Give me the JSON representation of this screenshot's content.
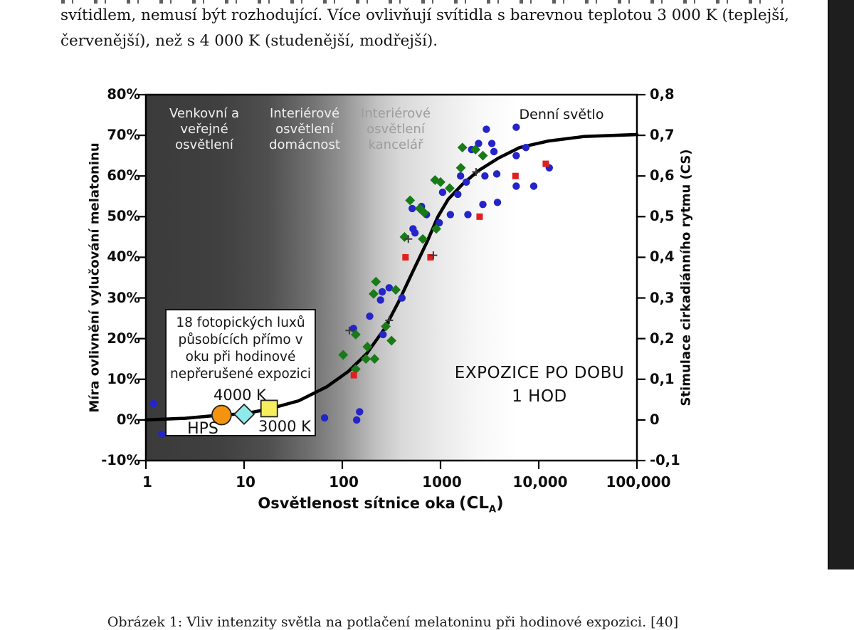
{
  "page": {
    "paragraph_line1": "svítidlem, nemusí být rozhodující. Více ovlivňují svítidla s barevnou teplotou 3 000 K (teplejší,",
    "paragraph_line2": "červenější), než s 4 000 K (studenější, modřejší).",
    "caption": "Obrázek 1: Vliv intenzity světla na potlačení melatoninu při hodinové expozici. [40]"
  },
  "chart": {
    "y_left": {
      "title": "Míra ovlivnění vylučování melatoninu",
      "ticks": [
        "80%",
        "70%",
        "60%",
        "50%",
        "40%",
        "30%",
        "20%",
        "10%",
        "0%",
        "-10%"
      ]
    },
    "y_right": {
      "title": "Stimulace cirkadiánního rytmu (CS)",
      "ticks": [
        "0,8",
        "0,7",
        "0,6",
        "0,5",
        "0,4",
        "0,3",
        "0,2",
        "0,1",
        "0",
        "-0,1"
      ]
    },
    "x_axis_title": {
      "main": "Osvětlenost sítnice oka",
      "unit_open": "(CL",
      "unit_sub": "A",
      "unit_close": ")"
    },
    "x_ticks": [
      "1",
      "10",
      "100",
      "1000",
      "10,000",
      "100,000"
    ],
    "zones": [
      {
        "lines": [
          "Venkovní a",
          "veřejné",
          "osvětlení"
        ]
      },
      {
        "lines": [
          "Interiérové",
          "osvětlení",
          "domácnost"
        ]
      },
      {
        "lines": [
          "Interiérové",
          "osvětlení",
          "kancelář"
        ]
      },
      {
        "lines": [
          "Denní světlo"
        ]
      }
    ],
    "annotation_box": {
      "lines": [
        "18 fotopických luxů",
        "působících přímo v",
        "oku při hodinové",
        "nepřerušené expozici"
      ]
    },
    "marker_labels": {
      "hps": "HPS",
      "k4000": "4000 K",
      "k3000": "3000 K"
    },
    "exposure": {
      "line1": "EXPOZICE PO DOBU",
      "line2": "1 HOD"
    }
  },
  "chart_data": {
    "type": "scatter",
    "x_axis": {
      "label": "Osvětlenost sítnice oka (CLA)",
      "scale": "log",
      "range": [
        1,
        100000
      ],
      "ticks": [
        1,
        10,
        100,
        1000,
        10000,
        100000
      ]
    },
    "y_axis_left": {
      "label": "Míra ovlivnění vylučování melatoninu",
      "unit": "%",
      "range": [
        -10,
        80
      ],
      "ticks": [
        80,
        70,
        60,
        50,
        40,
        30,
        20,
        10,
        0,
        -10
      ]
    },
    "y_axis_right": {
      "label": "Stimulace cirkadiánního rytmu (CS)",
      "range": [
        -0.1,
        0.8
      ],
      "ticks": [
        0.8,
        0.7,
        0.6,
        0.5,
        0.4,
        0.3,
        0.2,
        0.1,
        0,
        -0.1
      ]
    },
    "grid": false,
    "series": [
      {
        "name": "blue-circles",
        "marker": "circle",
        "color": "#2424C8",
        "points": [
          [
            1.2,
            4
          ],
          [
            1.45,
            -3.5
          ],
          [
            66,
            0.5
          ],
          [
            150,
            2
          ],
          [
            140,
            0
          ],
          [
            130,
            22.5
          ],
          [
            260,
            21
          ],
          [
            300,
            32.5
          ],
          [
            255,
            31.5
          ],
          [
            245,
            29.5
          ],
          [
            405,
            30
          ],
          [
            190,
            25.5
          ],
          [
            515,
            52
          ],
          [
            640,
            52.5
          ],
          [
            720,
            50.5
          ],
          [
            970,
            48.5
          ],
          [
            525,
            47
          ],
          [
            550,
            46
          ],
          [
            1260,
            50.5
          ],
          [
            1900,
            50.5
          ],
          [
            1050,
            56
          ],
          [
            1500,
            55.5
          ],
          [
            2930,
            71.5
          ],
          [
            5900,
            72
          ],
          [
            2440,
            68
          ],
          [
            2070,
            66.5
          ],
          [
            3330,
            68
          ],
          [
            3500,
            66
          ],
          [
            7400,
            67
          ],
          [
            5900,
            65
          ],
          [
            12800,
            62
          ],
          [
            1600,
            60
          ],
          [
            1830,
            58.5
          ],
          [
            2830,
            60
          ],
          [
            3740,
            60.5
          ],
          [
            5900,
            57.5
          ],
          [
            8900,
            57.5
          ],
          [
            2700,
            53
          ],
          [
            3800,
            53.5
          ]
        ]
      },
      {
        "name": "green-diamonds",
        "marker": "diamond",
        "color": "#187A18",
        "points": [
          [
            880,
            59
          ],
          [
            1000,
            58.5
          ],
          [
            1240,
            57
          ],
          [
            490,
            54
          ],
          [
            615,
            52
          ],
          [
            680,
            51
          ],
          [
            905,
            47
          ],
          [
            430,
            45
          ],
          [
            660,
            44.5
          ],
          [
            220,
            34
          ],
          [
            350,
            32
          ],
          [
            208,
            31
          ],
          [
            277,
            23
          ],
          [
            137,
            21
          ],
          [
            317,
            19.5
          ],
          [
            180,
            18
          ],
          [
            102,
            16
          ],
          [
            174,
            15
          ],
          [
            213,
            15
          ],
          [
            137,
            12.5
          ],
          [
            1670,
            67
          ],
          [
            2270,
            66.5
          ],
          [
            2700,
            65
          ],
          [
            1610,
            62
          ]
        ]
      },
      {
        "name": "red-squares",
        "marker": "square",
        "color": "#E02020",
        "points": [
          [
            440,
            40
          ],
          [
            790,
            40
          ],
          [
            131,
            11
          ],
          [
            11800,
            63
          ],
          [
            5800,
            60
          ],
          [
            2500,
            50
          ]
        ]
      },
      {
        "name": "plus-marks",
        "marker": "plus",
        "color": "#3A3A3A",
        "points": [
          [
            470,
            44.5
          ],
          [
            845,
            40.5
          ],
          [
            300,
            24.5
          ],
          [
            118,
            22
          ],
          [
            2300,
            61
          ]
        ]
      }
    ],
    "curve": {
      "name": "model-fit",
      "color": "#000000",
      "points": [
        [
          1,
          0
        ],
        [
          2.5,
          0.4
        ],
        [
          5.8,
          1.2
        ],
        [
          10,
          1.5
        ],
        [
          18,
          2.7
        ],
        [
          36,
          4.7
        ],
        [
          70,
          8.2
        ],
        [
          116,
          12
        ],
        [
          177,
          16.3
        ],
        [
          268,
          22.4
        ],
        [
          373,
          29
        ],
        [
          520,
          36.4
        ],
        [
          730,
          43.8
        ],
        [
          940,
          50
        ],
        [
          1200,
          54.3
        ],
        [
          1680,
          58
        ],
        [
          2430,
          61.3
        ],
        [
          3880,
          64.4
        ],
        [
          6400,
          67
        ],
        [
          12500,
          68.6
        ],
        [
          28700,
          69.7
        ],
        [
          100000,
          70.2
        ]
      ]
    },
    "reference_markers": [
      {
        "label": "HPS",
        "shape": "circle",
        "color": "#F5930E",
        "cla": 5.9,
        "pct": 1.2
      },
      {
        "label": "4000 K",
        "shape": "diamond",
        "color": "#8FE9EA",
        "cla": 10,
        "pct": 1.4
      },
      {
        "label": "3000 K",
        "shape": "square",
        "color": "#F6EE5C",
        "cla": 18,
        "pct": 2.8
      }
    ]
  }
}
